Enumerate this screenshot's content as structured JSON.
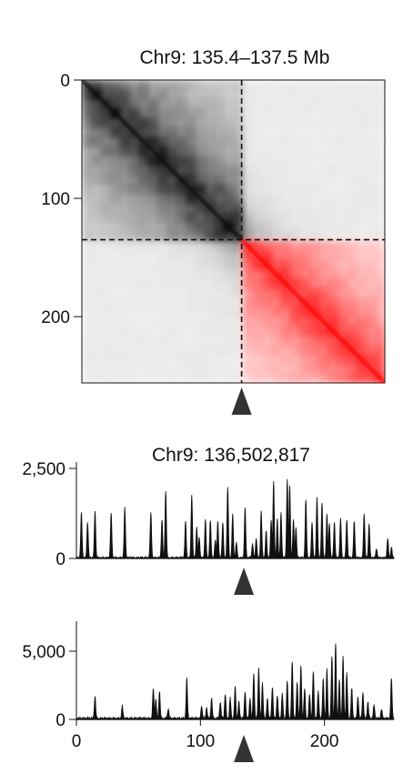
{
  "chart_data": [
    {
      "type": "heatmap",
      "title": "Chr9: 135.4–137.5 Mb",
      "xlabel": "",
      "ylabel": "",
      "bins": 256,
      "yticks": [
        "0",
        "100",
        "200"
      ],
      "ytick_values": [
        0,
        100,
        200
      ],
      "axis_range": [
        0,
        256
      ],
      "marker_bin": 135,
      "marker_style": "dashed lines + triangle",
      "colors": {
        "upstream": "#000000",
        "downstream": "#ff1a1a"
      },
      "legend": "none",
      "grid": false
    },
    {
      "type": "area",
      "title": "Chr9: 136,502,817",
      "xlabel": "",
      "ylabel": "",
      "yticks": [
        "0",
        "2,500"
      ],
      "ytick_values": [
        0,
        2500
      ],
      "ylim": [
        0,
        2600
      ],
      "xlim": [
        0,
        256
      ],
      "marker_bin": 135,
      "peaks": [
        {
          "x": 4,
          "y": 1250
        },
        {
          "x": 9,
          "y": 1000
        },
        {
          "x": 15,
          "y": 1300
        },
        {
          "x": 28,
          "y": 1250
        },
        {
          "x": 39,
          "y": 1390
        },
        {
          "x": 60,
          "y": 1260
        },
        {
          "x": 69,
          "y": 1060
        },
        {
          "x": 72,
          "y": 1860
        },
        {
          "x": 88,
          "y": 1010
        },
        {
          "x": 93,
          "y": 1760
        },
        {
          "x": 97,
          "y": 850
        },
        {
          "x": 99,
          "y": 580
        },
        {
          "x": 104,
          "y": 1060
        },
        {
          "x": 108,
          "y": 1040
        },
        {
          "x": 112,
          "y": 500
        },
        {
          "x": 114,
          "y": 1020
        },
        {
          "x": 118,
          "y": 980
        },
        {
          "x": 122,
          "y": 1980
        },
        {
          "x": 126,
          "y": 1210
        },
        {
          "x": 129,
          "y": 430
        },
        {
          "x": 136,
          "y": 1380
        },
        {
          "x": 142,
          "y": 400
        },
        {
          "x": 145,
          "y": 550
        },
        {
          "x": 149,
          "y": 1300
        },
        {
          "x": 153,
          "y": 760
        },
        {
          "x": 157,
          "y": 1050
        },
        {
          "x": 159,
          "y": 2130
        },
        {
          "x": 162,
          "y": 1080
        },
        {
          "x": 165,
          "y": 1250
        },
        {
          "x": 170,
          "y": 2190
        },
        {
          "x": 172,
          "y": 2000
        },
        {
          "x": 175,
          "y": 1050
        },
        {
          "x": 177,
          "y": 860
        },
        {
          "x": 185,
          "y": 1610
        },
        {
          "x": 190,
          "y": 1000
        },
        {
          "x": 194,
          "y": 1690
        },
        {
          "x": 198,
          "y": 1530
        },
        {
          "x": 202,
          "y": 1220
        },
        {
          "x": 204,
          "y": 950
        },
        {
          "x": 208,
          "y": 1000
        },
        {
          "x": 213,
          "y": 1100
        },
        {
          "x": 218,
          "y": 1050
        },
        {
          "x": 224,
          "y": 1020
        },
        {
          "x": 232,
          "y": 1240
        },
        {
          "x": 236,
          "y": 950
        },
        {
          "x": 242,
          "y": 250
        },
        {
          "x": 251,
          "y": 540
        },
        {
          "x": 254,
          "y": 300
        }
      ]
    },
    {
      "type": "area",
      "title": "",
      "xlabel": "",
      "ylabel": "",
      "yticks": [
        "0",
        "5,000"
      ],
      "ytick_values": [
        0,
        5000
      ],
      "xticks": [
        "0",
        "100",
        "200"
      ],
      "xtick_values": [
        0,
        100,
        200
      ],
      "ylim": [
        0,
        7000
      ],
      "xlim": [
        0,
        256
      ],
      "marker_bin": 135,
      "peaks": [
        {
          "x": 15,
          "y": 1600
        },
        {
          "x": 37,
          "y": 900
        },
        {
          "x": 62,
          "y": 2200
        },
        {
          "x": 64,
          "y": 1400
        },
        {
          "x": 67,
          "y": 2000
        },
        {
          "x": 74,
          "y": 700
        },
        {
          "x": 89,
          "y": 2900
        },
        {
          "x": 101,
          "y": 900
        },
        {
          "x": 105,
          "y": 800
        },
        {
          "x": 109,
          "y": 1500
        },
        {
          "x": 116,
          "y": 1200
        },
        {
          "x": 120,
          "y": 1800
        },
        {
          "x": 124,
          "y": 1500
        },
        {
          "x": 128,
          "y": 2300
        },
        {
          "x": 131,
          "y": 1200
        },
        {
          "x": 136,
          "y": 2000
        },
        {
          "x": 140,
          "y": 1500
        },
        {
          "x": 143,
          "y": 3300
        },
        {
          "x": 147,
          "y": 3700
        },
        {
          "x": 150,
          "y": 2600
        },
        {
          "x": 154,
          "y": 1500
        },
        {
          "x": 158,
          "y": 2300
        },
        {
          "x": 162,
          "y": 1700
        },
        {
          "x": 166,
          "y": 1800
        },
        {
          "x": 170,
          "y": 2700
        },
        {
          "x": 174,
          "y": 4200
        },
        {
          "x": 178,
          "y": 2700
        },
        {
          "x": 181,
          "y": 3900
        },
        {
          "x": 184,
          "y": 2200
        },
        {
          "x": 188,
          "y": 1800
        },
        {
          "x": 191,
          "y": 3500
        },
        {
          "x": 195,
          "y": 2000
        },
        {
          "x": 199,
          "y": 2900
        },
        {
          "x": 202,
          "y": 3600
        },
        {
          "x": 206,
          "y": 4600
        },
        {
          "x": 209,
          "y": 5500
        },
        {
          "x": 212,
          "y": 2800
        },
        {
          "x": 215,
          "y": 4500
        },
        {
          "x": 218,
          "y": 3300
        },
        {
          "x": 222,
          "y": 2200
        },
        {
          "x": 227,
          "y": 1600
        },
        {
          "x": 231,
          "y": 1900
        },
        {
          "x": 235,
          "y": 1200
        },
        {
          "x": 240,
          "y": 1000
        },
        {
          "x": 246,
          "y": 700
        },
        {
          "x": 254,
          "y": 2900
        }
      ]
    }
  ]
}
